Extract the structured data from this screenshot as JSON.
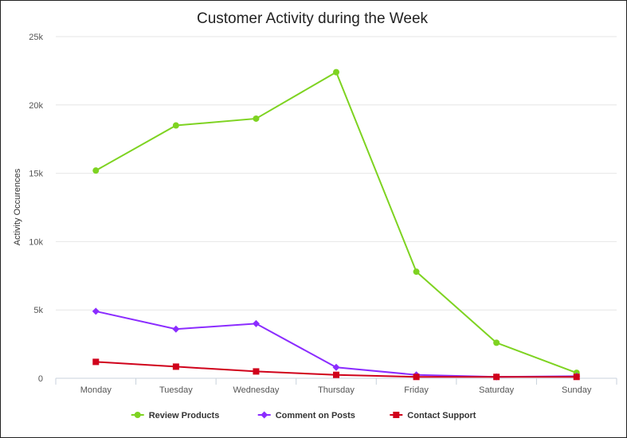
{
  "chart_data": {
    "type": "line",
    "title": "Customer Activity during the Week",
    "xlabel": "",
    "ylabel": "Activity Occurences",
    "categories": [
      "Monday",
      "Tuesday",
      "Wednesday",
      "Thursday",
      "Friday",
      "Saturday",
      "Sunday"
    ],
    "ylim": [
      0,
      25000
    ],
    "yticks": [
      0,
      5000,
      10000,
      15000,
      20000,
      25000
    ],
    "ytick_labels": [
      "0",
      "5k",
      "10k",
      "15k",
      "20k",
      "25k"
    ],
    "grid": true,
    "legend_position": "bottom",
    "series": [
      {
        "name": "Review Products",
        "color": "#7ed321",
        "marker": "circle",
        "values": [
          15200,
          18500,
          19000,
          22400,
          7800,
          2600,
          400
        ]
      },
      {
        "name": "Comment on Posts",
        "color": "#8b2cff",
        "marker": "diamond",
        "values": [
          4900,
          3600,
          4000,
          800,
          250,
          100,
          150
        ]
      },
      {
        "name": "Contact Support",
        "color": "#d0021b",
        "marker": "square",
        "values": [
          1200,
          850,
          500,
          250,
          100,
          100,
          100
        ]
      }
    ]
  }
}
